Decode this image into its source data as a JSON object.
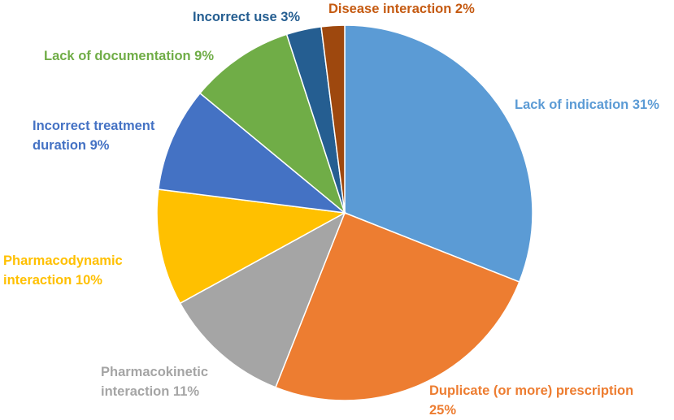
{
  "chart_data": {
    "type": "pie",
    "title": "",
    "slices": [
      {
        "label_lines": [
          "Lack of indication 31%"
        ],
        "value": 31,
        "color": "#5B9BD5",
        "label_color": "#5B9BD5"
      },
      {
        "label_lines": [
          "Duplicate (or more) prescription",
          "25%"
        ],
        "value": 25,
        "color": "#ED7D31",
        "label_color": "#ED7D31"
      },
      {
        "label_lines": [
          "Pharmacokinetic",
          "interaction 11%"
        ],
        "value": 11,
        "color": "#A5A5A5",
        "label_color": "#A5A5A5"
      },
      {
        "label_lines": [
          "Pharmacodynamic",
          "interaction 10%"
        ],
        "value": 10,
        "color": "#FFC000",
        "label_color": "#FFC000"
      },
      {
        "label_lines": [
          "Incorrect treatment",
          "duration 9%"
        ],
        "value": 9,
        "color": "#4472C4",
        "label_color": "#4472C4"
      },
      {
        "label_lines": [
          "Lack of documentation 9%"
        ],
        "value": 9,
        "color": "#70AD47",
        "label_color": "#70AD47"
      },
      {
        "label_lines": [
          "Incorrect use 3%"
        ],
        "value": 3,
        "color": "#255E91",
        "label_color": "#255E91"
      },
      {
        "label_lines": [
          "Disease interaction 2%"
        ],
        "value": 2,
        "color": "#9E480E",
        "label_color": "#C55A11"
      }
    ]
  }
}
